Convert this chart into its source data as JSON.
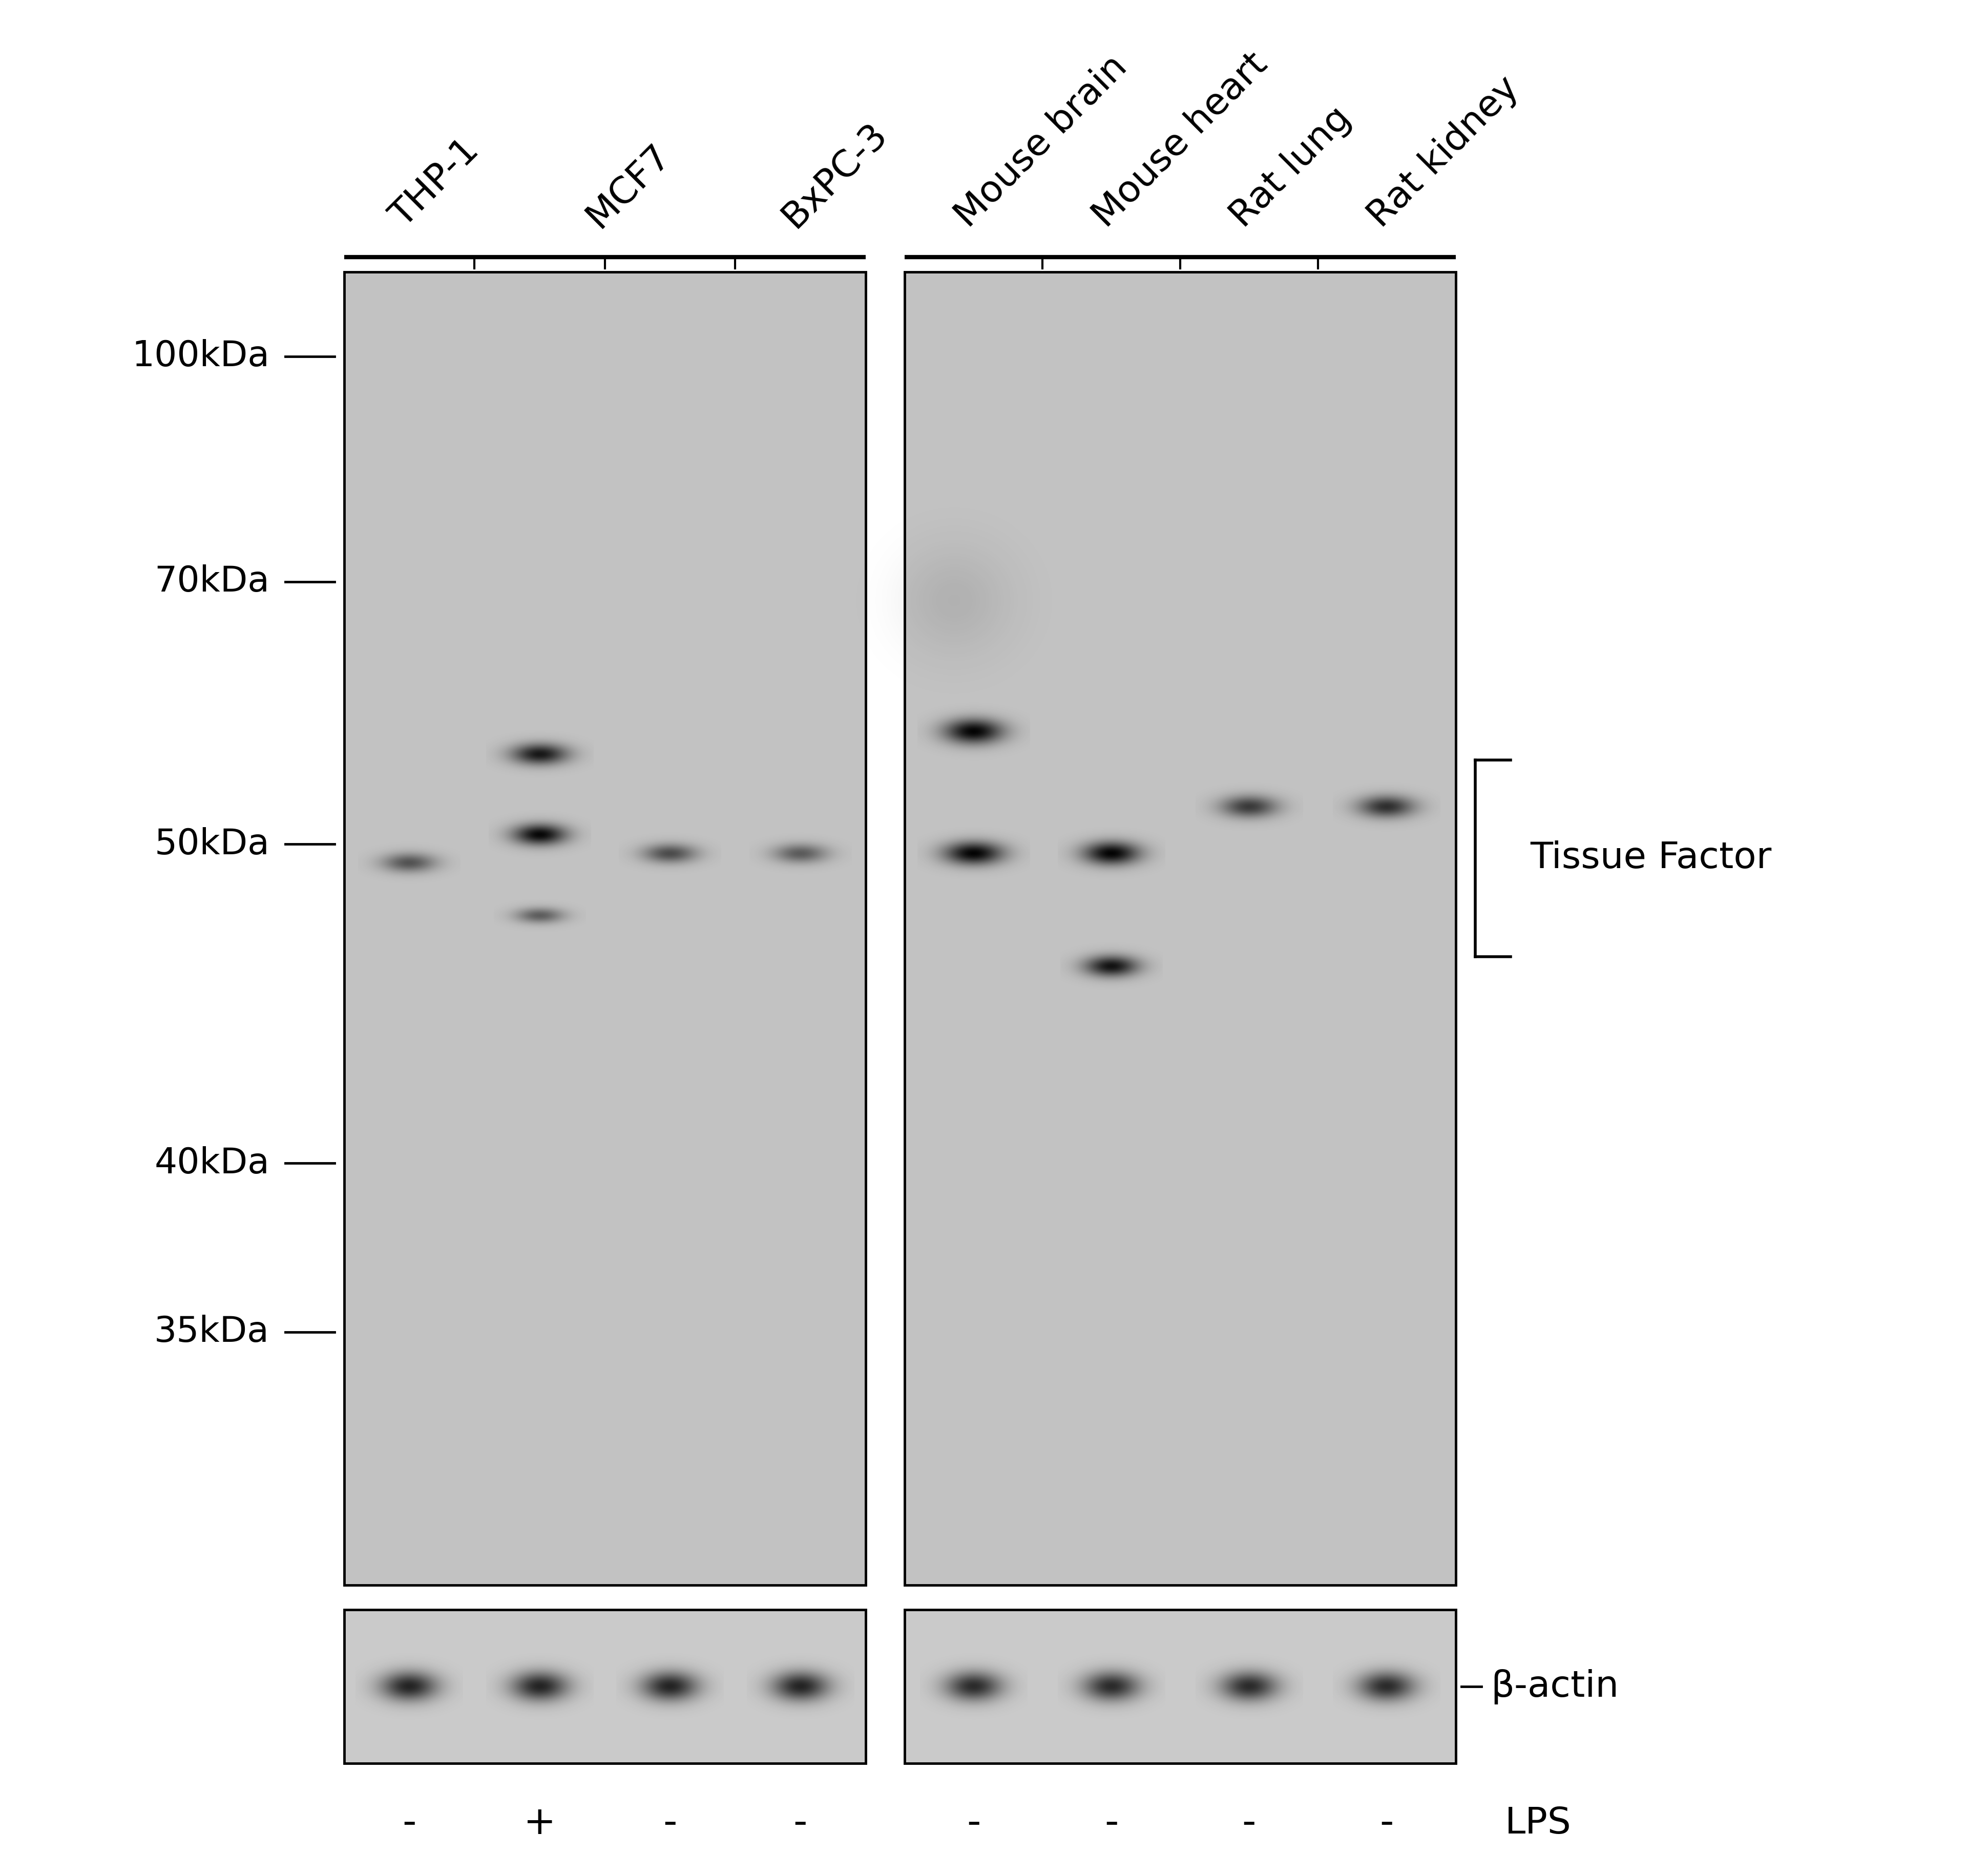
{
  "figure_width": 38.4,
  "figure_height": 36.63,
  "bg_color": "#ffffff",
  "panel_bg": "#c2c2c2",
  "actin_bg": "#cacaca",
  "lane_labels": [
    "THP-1",
    "MCF7",
    "BxPC-3",
    "Mouse brain",
    "Mouse heart",
    "Rat lung",
    "Rat kidney"
  ],
  "lps_signs": [
    "-",
    "+",
    "-",
    "-",
    "-",
    "-",
    "-",
    "-"
  ],
  "mw_labels": [
    "100kDa",
    "70kDa",
    "50kDa",
    "40kDa",
    "35kDa"
  ],
  "tissue_factor_label": "Tissue Factor",
  "beta_actin_label": "β-actin",
  "lps_text": "LPS",
  "label_fontsize": 52,
  "mw_fontsize": 50,
  "annot_fontsize": 52
}
